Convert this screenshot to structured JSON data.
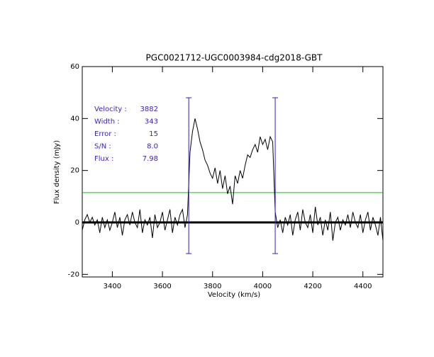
{
  "chart_data": {
    "type": "line",
    "title": "PGC0021712-UGC0003984-cdg2018-GBT",
    "xlabel": "Velocity (km/s)",
    "ylabel": "Flux density (mJy)",
    "x": [
      3280,
      3290,
      3300,
      3310,
      3320,
      3330,
      3340,
      3350,
      3360,
      3370,
      3380,
      3390,
      3400,
      3410,
      3420,
      3430,
      3440,
      3450,
      3460,
      3470,
      3480,
      3490,
      3500,
      3510,
      3520,
      3530,
      3540,
      3550,
      3560,
      3570,
      3580,
      3590,
      3600,
      3610,
      3620,
      3630,
      3640,
      3650,
      3660,
      3670,
      3680,
      3690,
      3700,
      3710,
      3720,
      3730,
      3740,
      3750,
      3760,
      3770,
      3780,
      3790,
      3800,
      3810,
      3820,
      3830,
      3840,
      3850,
      3860,
      3870,
      3880,
      3890,
      3900,
      3910,
      3920,
      3930,
      3940,
      3950,
      3960,
      3970,
      3980,
      3990,
      4000,
      4010,
      4020,
      4030,
      4040,
      4050,
      4060,
      4070,
      4080,
      4090,
      4100,
      4110,
      4120,
      4130,
      4140,
      4150,
      4160,
      4170,
      4180,
      4190,
      4200,
      4210,
      4220,
      4230,
      4240,
      4250,
      4260,
      4270,
      4280,
      4290,
      4300,
      4310,
      4320,
      4330,
      4340,
      4350,
      4360,
      4370,
      4380,
      4390,
      4400,
      4410,
      4420,
      4430,
      4440,
      4450,
      4460,
      4470,
      4480
    ],
    "series": [
      {
        "name": "spectrum",
        "color": "#000000",
        "values": [
          -3,
          1,
          3,
          0,
          2,
          -1,
          1,
          -4,
          2,
          -2,
          1,
          -3,
          0,
          4,
          -2,
          2,
          -5,
          1,
          3,
          -1,
          4,
          0,
          -2,
          5,
          -4,
          1,
          -1,
          2,
          -6,
          3,
          -2,
          0,
          4,
          -3,
          1,
          5,
          -4,
          2,
          -1,
          3,
          5,
          -2,
          3,
          27,
          35,
          40,
          36,
          31,
          28,
          24,
          22,
          19,
          17,
          21,
          15,
          20,
          13,
          18,
          11,
          14,
          7,
          18,
          15,
          20,
          17,
          22,
          26,
          25,
          28,
          30,
          27,
          33,
          30,
          32,
          28,
          33,
          31,
          4,
          -2,
          1,
          -4,
          2,
          -1,
          3,
          -5,
          1,
          4,
          -3,
          5,
          0,
          -2,
          3,
          -4,
          6,
          -1,
          2,
          -5,
          1,
          -3,
          4,
          -7,
          0,
          2,
          -3,
          1,
          -1,
          3,
          -2,
          4,
          0,
          -2,
          3,
          -4,
          1,
          4,
          -3,
          2,
          -1,
          -5,
          2,
          -7
        ]
      }
    ],
    "xlim": [
      3280,
      4480
    ],
    "ylim": [
      -21,
      60
    ],
    "xticks": [
      3400,
      3600,
      3800,
      4000,
      4200,
      4400
    ],
    "yticks": [
      -20,
      0,
      20,
      40,
      60
    ],
    "markers": {
      "x": [
        3705,
        4050
      ],
      "ymin": -12,
      "ymax": 48,
      "color": "#3c1fb4"
    },
    "threshold": {
      "y": 11.5,
      "color": "#00cc00"
    },
    "baseline": 0,
    "stats": [
      {
        "label": "Velocity :",
        "value": "3882"
      },
      {
        "label": "Width :",
        "value": "343"
      },
      {
        "label": "Error :",
        "value": "15"
      },
      {
        "label": "S/N :",
        "value": "8.0"
      },
      {
        "label": "Flux :",
        "value": "7.98"
      }
    ],
    "stats_color": "#3c1fb4"
  }
}
